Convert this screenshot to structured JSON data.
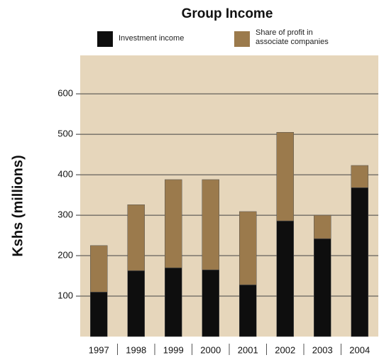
{
  "chart_data": {
    "type": "stacked_bar",
    "title": "Group Income",
    "y_label": "Kshs (millions)",
    "categories": [
      "1997",
      "1998",
      "1999",
      "2000",
      "2001",
      "2002",
      "2003",
      "2004"
    ],
    "series": [
      {
        "name": "Investment income",
        "color": "#0e0e0e",
        "values": [
          110,
          163,
          170,
          165,
          128,
          286,
          242,
          368
        ]
      },
      {
        "name": "Share of profit in associate companies",
        "color": "#9b7a4c",
        "values": [
          115,
          163,
          218,
          223,
          181,
          219,
          58,
          55
        ]
      }
    ],
    "ylim": [
      0,
      695
    ],
    "yticks": [
      100,
      200,
      300,
      400,
      500,
      600
    ],
    "grid": true
  }
}
